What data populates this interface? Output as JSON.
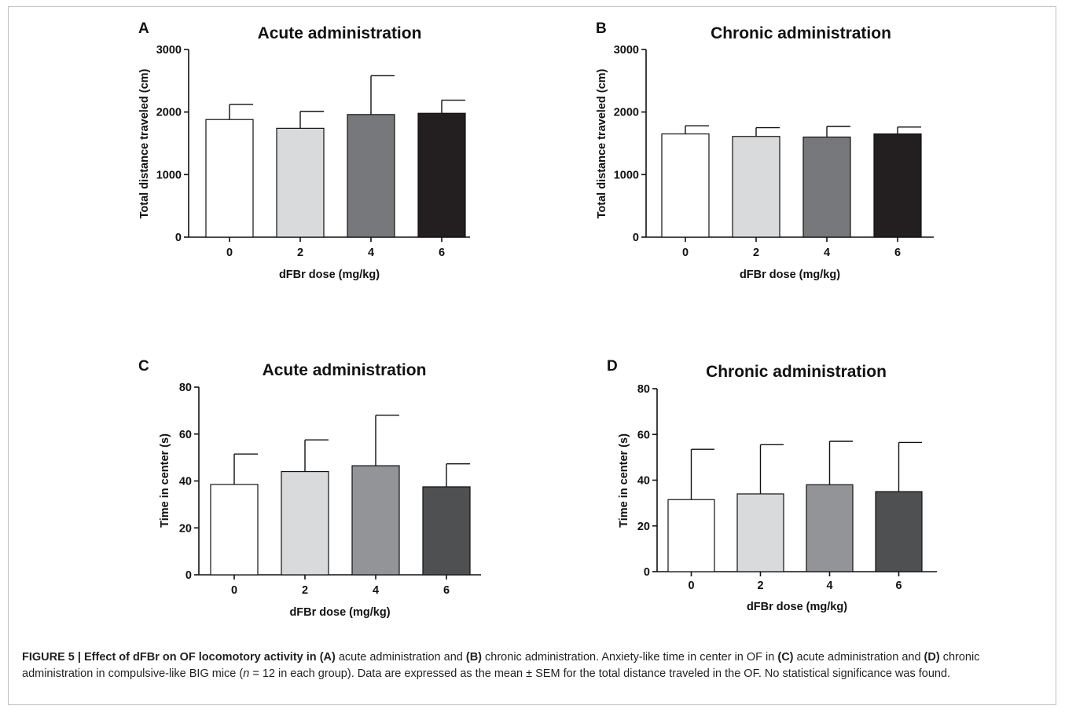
{
  "chart_data": [
    {
      "type": "bar",
      "panel": "A",
      "title": "Acute administration",
      "xlabel": "dFBr dose (mg/kg)",
      "ylabel": "Total distance traveled (cm)",
      "ylim": [
        0,
        3000
      ],
      "yticks": [
        0,
        1000,
        2000,
        3000
      ],
      "categories": [
        "0",
        "2",
        "4",
        "6"
      ],
      "values": [
        1880,
        1740,
        1960,
        1980
      ],
      "errors": [
        240,
        270,
        620,
        210
      ],
      "colors": [
        "#ffffff",
        "#d9dadc",
        "#77787c",
        "#231f20"
      ],
      "grid": false
    },
    {
      "type": "bar",
      "panel": "B",
      "title": "Chronic administration",
      "xlabel": "dFBr dose (mg/kg)",
      "ylabel": "Total distance traveled (cm)",
      "ylim": [
        0,
        3000
      ],
      "yticks": [
        0,
        1000,
        2000,
        3000
      ],
      "categories": [
        "0",
        "2",
        "4",
        "6"
      ],
      "values": [
        1650,
        1610,
        1600,
        1650
      ],
      "errors": [
        130,
        140,
        170,
        110
      ],
      "colors": [
        "#ffffff",
        "#d9dadc",
        "#77787c",
        "#231f20"
      ],
      "grid": false
    },
    {
      "type": "bar",
      "panel": "C",
      "title": "Acute administration",
      "xlabel": "dFBr dose (mg/kg)",
      "ylabel": "Time in center (s)",
      "ylim": [
        0,
        80
      ],
      "yticks": [
        0,
        20,
        40,
        60,
        80
      ],
      "categories": [
        "0",
        "2",
        "4",
        "6"
      ],
      "values": [
        38.5,
        44,
        46.5,
        37.5
      ],
      "errors": [
        13,
        13.5,
        21.5,
        9.8
      ],
      "colors": [
        "#ffffff",
        "#d9dadc",
        "#939497",
        "#4f5052"
      ],
      "grid": false
    },
    {
      "type": "bar",
      "panel": "D",
      "title": "Chronic administration",
      "xlabel": "dFBr dose (mg/kg)",
      "ylabel": "Time in center (s)",
      "ylim": [
        0,
        80
      ],
      "yticks": [
        0,
        20,
        40,
        60,
        80
      ],
      "categories": [
        "0",
        "2",
        "4",
        "6"
      ],
      "values": [
        31.5,
        34,
        38,
        35
      ],
      "errors": [
        22,
        21.5,
        19,
        21.5
      ],
      "colors": [
        "#ffffff",
        "#d9dadc",
        "#939497",
        "#4f5052"
      ],
      "grid": false
    }
  ],
  "caption": {
    "label": "FIGURE 5 | Effect of dFBr on OF locomotory activity in",
    "a": "(A)",
    "t1": " acute administration and ",
    "b": "(B)",
    "t2": " chronic administration. Anxiety-like time in center in OF in ",
    "c": "(C)",
    "t3": " acute administration and ",
    "d": "(D)",
    "t4": " chronic administration in compulsive-like BIG mice (",
    "n": "n",
    "t5": " = 12 in each group). Data are expressed as the mean ± SEM for the total distance traveled in the OF. No statistical significance was found."
  }
}
